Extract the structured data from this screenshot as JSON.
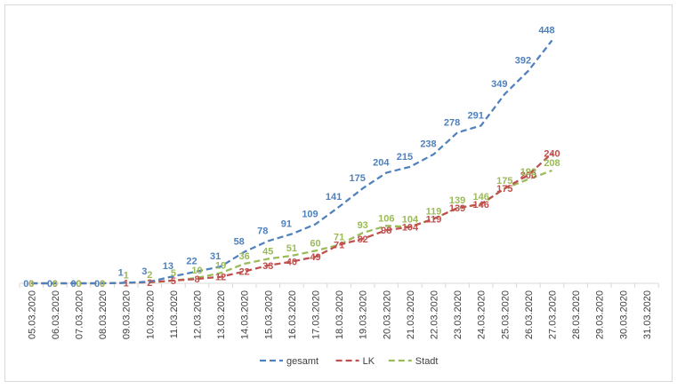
{
  "chart_data": {
    "type": "line",
    "title": "",
    "xlabel": "",
    "ylabel": "",
    "ylim": [
      0,
      480
    ],
    "grid": false,
    "legend_position": "bottom",
    "categories": [
      "05.03.2020",
      "06.03.2020",
      "07.03.2020",
      "08.03.2020",
      "09.03.2020",
      "10.03.2020",
      "11.03.2020",
      "12.03.2020",
      "13.03.2020",
      "14.03.2020",
      "15.03.2020",
      "16.03.2020",
      "17.03.2020",
      "18.03.2020",
      "19.03.2020",
      "20.03.2020",
      "21.03.2020",
      "22.03.2020",
      "23.03.2020",
      "24.03.2020",
      "25.03.2020",
      "26.03.2020",
      "27.03.2020",
      "28.03.2020",
      "29.03.2020",
      "30.03.2020",
      "31.03.2020"
    ],
    "series": [
      {
        "name": "gesamt",
        "color": "#4f81bd",
        "values": [
          0,
          0,
          0,
          0,
          1,
          3,
          13,
          22,
          31,
          58,
          78,
          91,
          109,
          141,
          175,
          204,
          215,
          238,
          278,
          291,
          349,
          392,
          448,
          null,
          null,
          null,
          null
        ]
      },
      {
        "name": "LK",
        "color": "#c0504d",
        "values": [
          0,
          0,
          0,
          0,
          1,
          2,
          5,
          8,
          12,
          22,
          33,
          40,
          49,
          71,
          82,
          98,
          104,
          119,
          139,
          146,
          175,
          200,
          240,
          null,
          null,
          null,
          null
        ]
      },
      {
        "name": "Stadt",
        "color": "#9bbb59",
        "values": [
          0,
          0,
          0,
          0,
          1,
          2,
          5,
          10,
          19,
          36,
          45,
          51,
          60,
          71,
          93,
          106,
          104,
          119,
          139,
          146,
          175,
          192,
          208,
          null,
          null,
          null,
          null
        ]
      }
    ]
  }
}
